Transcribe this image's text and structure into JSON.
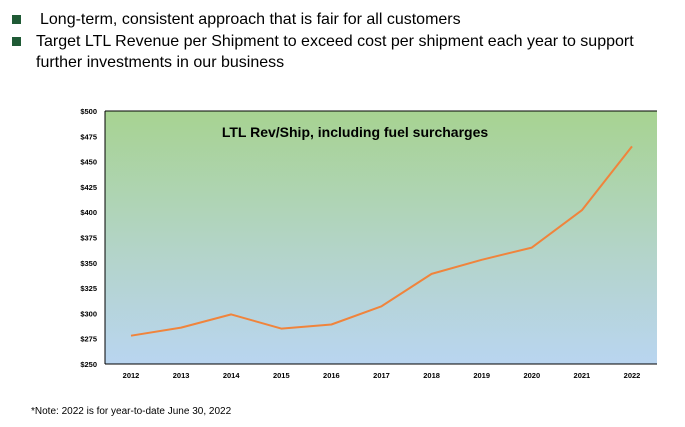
{
  "bullets": [
    {
      "text": "Long-term, consistent approach that is fair for all customers"
    },
    {
      "text": "Target LTL Revenue per Shipment to exceed cost per shipment each year to support further investments in our business"
    }
  ],
  "chart_data": {
    "type": "line",
    "title": "LTL Rev/Ship, including fuel surcharges",
    "xlabel": "",
    "ylabel": "",
    "categories": [
      "2012",
      "2013",
      "2014",
      "2015",
      "2016",
      "2017",
      "2018",
      "2019",
      "2020",
      "2021",
      "2022"
    ],
    "series": [
      {
        "name": "LTL Rev/Ship",
        "values": [
          278,
          286,
          299,
          285,
          289,
          307,
          339,
          353,
          365,
          402,
          465
        ]
      }
    ],
    "ylim": [
      250,
      500
    ],
    "yticks": [
      "$250",
      "$275",
      "$300",
      "$325",
      "$350",
      "$375",
      "$400",
      "$425",
      "$450",
      "$475",
      "$500"
    ],
    "grid": false,
    "line_color": "#f0843c",
    "bg_top_color": "#a7d391",
    "bg_bottom_color": "#b9d5f0"
  },
  "footnote": "*Note:  2022 is for year-to-date June 30, 2022"
}
